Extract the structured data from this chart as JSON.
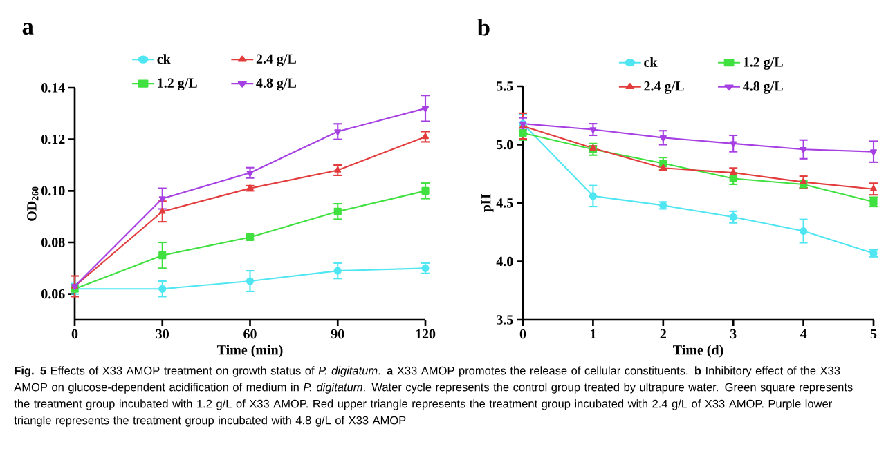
{
  "chart_data": [
    {
      "type": "line",
      "title": "a",
      "xlabel": "Time (min)",
      "ylabel": "OD$_{260}$",
      "x": [
        0,
        30,
        60,
        90,
        120
      ],
      "xlim": [
        0,
        120
      ],
      "xticks": [
        0,
        30,
        60,
        90,
        120
      ],
      "ylim": [
        0.05,
        0.14
      ],
      "yticks": [
        0.06,
        0.08,
        {
          "value": 0.1,
          "label": "0.10"
        },
        0.12,
        0.14
      ],
      "grid": false,
      "legend": "top",
      "line_style": "solid",
      "series": [
        {
          "name": "ck",
          "color": "#4fe6f2",
          "marker": "circle",
          "values": [
            0.062,
            0.062,
            0.065,
            0.069,
            0.07
          ],
          "errors": [
            0.002,
            0.003,
            0.004,
            0.003,
            0.002
          ]
        },
        {
          "name": "1.2 g/L",
          "color": "#3fe03f",
          "marker": "square",
          "values": [
            0.062,
            0.075,
            0.082,
            0.092,
            0.1
          ],
          "errors": [
            0.001,
            0.005,
            0.001,
            0.003,
            0.003
          ]
        },
        {
          "name": "2.4 g/L",
          "color": "#e23c3c",
          "marker": "triangle",
          "values": [
            0.063,
            0.092,
            0.101,
            0.108,
            0.121
          ],
          "errors": [
            0.004,
            0.004,
            0.001,
            0.002,
            0.002
          ]
        },
        {
          "name": "4.8 g/L",
          "color": "#a640e2",
          "marker": "triangle-down",
          "values": [
            0.063,
            0.097,
            0.107,
            0.123,
            0.132
          ],
          "errors": [
            null,
            0.004,
            0.002,
            0.003,
            0.005
          ]
        }
      ],
      "annotations": [
        "**Fig. 5**  Effects of X33 AMOP treatment on growth status of *P. digitatum*. **a** X33 AMOP promotes the release of cellular constituents. **b** Inhibitory effect of the X33 AMOP on glucose-dependent acidification of medium in *P. digitatum*. Water cycle represents the control group treated by ultrapure water. Green square represents the treatment group incubated with 1.2 g/L of X33 AMOP. Red upper triangle represents the treatment group incubated with 2.4 g/L of X33 AMOP. Purple lower triangle represents the treatment group incubated with 4.8 g/L of X33 AMOP"
      ]
    },
    {
      "type": "line",
      "title": "b",
      "xlabel": "Time (d)",
      "ylabel": "pH",
      "x": [
        0,
        1,
        2,
        3,
        4,
        5
      ],
      "xlim": [
        0,
        5
      ],
      "xticks": [
        0,
        1,
        2,
        3,
        4,
        5
      ],
      "ylim": [
        3.5,
        5.5
      ],
      "yticks": [
        3.5,
        {
          "value": 4,
          "label": "4.0"
        },
        4.5,
        {
          "value": 5,
          "label": "5.0"
        },
        5.5
      ],
      "grid": false,
      "legend": "top",
      "line_style": "solid",
      "series": [
        {
          "name": "ck",
          "color": "#4fe6f2",
          "marker": "circle",
          "values": [
            5.18,
            4.56,
            4.48,
            4.38,
            4.26,
            4.07
          ],
          "errors": [
            0.08,
            0.09,
            0.03,
            0.05,
            0.1,
            0.03
          ]
        },
        {
          "name": "1.2 g/L",
          "color": "#3fe03f",
          "marker": "square",
          "values": [
            5.1,
            4.96,
            4.84,
            4.71,
            4.66,
            4.51
          ],
          "errors": [
            0.06,
            0.05,
            0.05,
            0.05,
            0.03,
            0.04
          ]
        },
        {
          "name": "2.4 g/L",
          "color": "#e23c3c",
          "marker": "triangle",
          "values": [
            5.16,
            4.97,
            4.8,
            4.76,
            4.68,
            4.62
          ],
          "errors": [
            0.11,
            0.02,
            0.02,
            0.04,
            0.05,
            0.05
          ]
        },
        {
          "name": "4.8 g/L",
          "color": "#a640e2",
          "marker": "triangle-down",
          "values": [
            5.18,
            5.13,
            5.06,
            5.01,
            4.96,
            4.94
          ],
          "errors": [
            0.05,
            0.05,
            0.06,
            0.07,
            0.08,
            0.09
          ]
        }
      ]
    }
  ]
}
